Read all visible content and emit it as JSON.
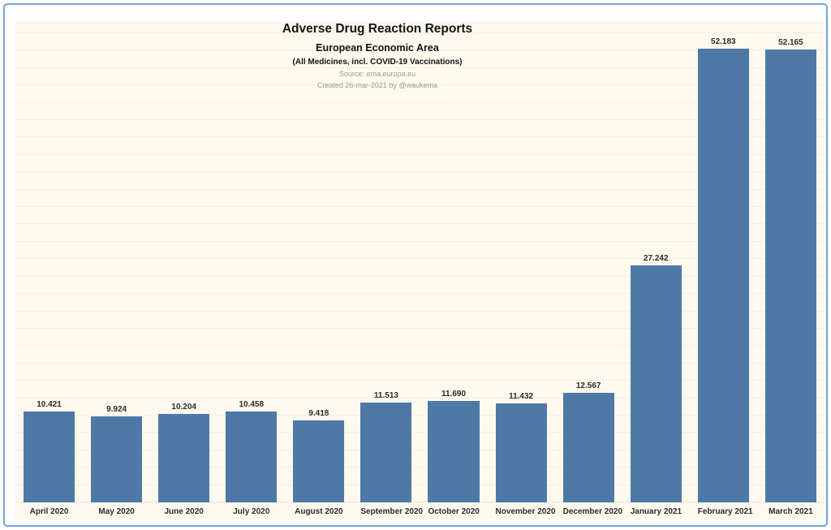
{
  "header": {
    "title": "Adverse Drug Reaction Reports",
    "subtitle": "European Economic Area",
    "note": "(All Medicines, incl. COVID-19 Vaccinations)",
    "source": "Source: ema.europa.eu",
    "created": "Created 26-mar-2021 by @waukema"
  },
  "chart_data": {
    "type": "bar",
    "title": "Adverse Drug Reaction Reports",
    "subtitle": "European Economic Area",
    "note": "(All Medicines, incl. COVID-19 Vaccinations)",
    "source": "Source: ema.europa.eu",
    "created": "Created 26-mar-2021 by @waukema",
    "categories": [
      "April 2020",
      "May 2020",
      "June 2020",
      "July 2020",
      "August 2020",
      "September 2020",
      "October 2020",
      "November 2020",
      "December 2020",
      "January 2021",
      "February 2021",
      "March 2021"
    ],
    "values": [
      10421,
      9924,
      10204,
      10458,
      9418,
      11513,
      11690,
      11432,
      12567,
      27242,
      52183,
      52165
    ],
    "value_labels": [
      "10.421",
      "9.924",
      "10.204",
      "10.458",
      "9.418",
      "11.513",
      "11.690",
      "11.432",
      "12.567",
      "27.242",
      "52.183",
      "52.165"
    ],
    "xlabel": "",
    "ylabel": "",
    "ylim": [
      0,
      55400
    ],
    "gridline_step": 2000,
    "grid": true,
    "legend": false,
    "bar_color": "#4e79a7",
    "plot_background": "#fdf9ef",
    "gridline_color": "#f6efe1",
    "frame_border_color": "#74a4d7",
    "label_color": "#2b2b2b",
    "muted_text_color": "#9b9b94"
  }
}
